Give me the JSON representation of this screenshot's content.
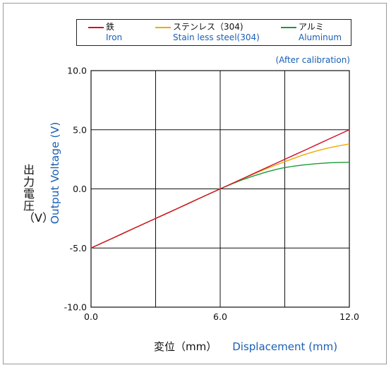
{
  "legend": {
    "items": [
      {
        "jp": "鉄",
        "en": "Iron",
        "color": "#d0102a"
      },
      {
        "jp": "ステンレス（304)",
        "en": "Stain less steel(304)",
        "color": "#f0a800"
      },
      {
        "jp": "アルミ",
        "en": "Aluminum",
        "color": "#1a9a3a"
      }
    ]
  },
  "note": "(After calibration)",
  "axis_labels": {
    "y_jp": "出力電圧（V）",
    "y_en": "Output Voltage (V)",
    "x_jp": "変位（mm）",
    "x_en": "Displacement (mm)"
  },
  "chart_data": {
    "type": "line",
    "xlim": [
      0,
      12
    ],
    "ylim": [
      -10,
      10
    ],
    "x_ticks": [
      0,
      6,
      12
    ],
    "x_tick_labels": [
      "0.0",
      "6.0",
      "12.0"
    ],
    "x_grid": [
      0,
      3,
      6,
      9,
      12
    ],
    "y_ticks": [
      -10,
      -5,
      0,
      5,
      10
    ],
    "y_tick_labels": [
      "-10.0",
      "-5.0",
      "0.0",
      "5.0",
      "10.0"
    ],
    "grid": true,
    "legend_position": "top",
    "x": [
      0,
      1,
      2,
      3,
      4,
      5,
      6,
      7,
      8,
      9,
      10,
      11,
      12
    ],
    "series": [
      {
        "name": "Iron",
        "color": "#d0102a",
        "values": [
          -5.0,
          -4.17,
          -3.33,
          -2.5,
          -1.67,
          -0.83,
          0.0,
          0.83,
          1.67,
          2.5,
          3.33,
          4.17,
          5.0
        ]
      },
      {
        "name": "Stain less steel(304)",
        "color": "#f0a800",
        "values": [
          -5.0,
          -4.17,
          -3.33,
          -2.5,
          -1.67,
          -0.83,
          0.0,
          0.82,
          1.6,
          2.3,
          2.95,
          3.45,
          3.8
        ]
      },
      {
        "name": "Aluminum",
        "color": "#1a9a3a",
        "values": [
          -5.0,
          -4.17,
          -3.33,
          -2.5,
          -1.67,
          -0.83,
          0.0,
          0.75,
          1.35,
          1.8,
          2.05,
          2.2,
          2.25
        ]
      }
    ]
  }
}
